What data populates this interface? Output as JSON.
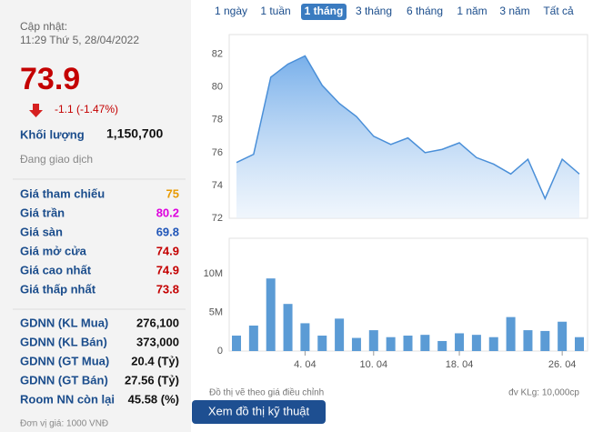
{
  "header": {
    "update_label": "Cập nhật:",
    "update_time": "11:29 Thứ 5, 28/04/2022"
  },
  "quote": {
    "price": "73.9",
    "change": "-1.1 (-1.47%)",
    "volume_label": "Khối lượng",
    "volume": "1,150,700",
    "status": "Đang giao dịch"
  },
  "prices": [
    {
      "label": "Giá tham chiếu",
      "value": "75",
      "color": "#e89a00"
    },
    {
      "label": "Giá trần",
      "value": "80.2",
      "color": "#dd00dd"
    },
    {
      "label": "Giá sàn",
      "value": "69.8",
      "color": "#1f55b8"
    },
    {
      "label": "Giá mở cửa",
      "value": "74.9",
      "color": "#c40000"
    },
    {
      "label": "Giá cao nhất",
      "value": "74.9",
      "color": "#c40000"
    },
    {
      "label": "Giá thấp nhất",
      "value": "73.8",
      "color": "#c40000"
    }
  ],
  "foreign": [
    {
      "label": "GDNN (KL Mua)",
      "value": "276,100"
    },
    {
      "label": "GDNN (KL Bán)",
      "value": "373,000"
    },
    {
      "label": "GDNN (GT Mua)",
      "value": "20.4 (Tỷ)"
    },
    {
      "label": "GDNN (GT Bán)",
      "value": "27.56 (Tỷ)"
    },
    {
      "label": "Room NN còn lại",
      "value": "45.58 (%)"
    }
  ],
  "unit_note": "Đơn vị giá: 1000 VNĐ",
  "tabs": {
    "items": [
      "1 ngày",
      "1 tuần",
      "1 tháng",
      "3 tháng",
      "6 tháng",
      "1 năm",
      "3 năm",
      "Tất cả"
    ],
    "active": 2
  },
  "chart_data": [
    {
      "type": "area",
      "color": "#4a8fd8",
      "values": [
        75.4,
        75.9,
        80.6,
        81.4,
        81.9,
        80.1,
        79,
        78.2,
        77,
        76.5,
        76.9,
        76,
        76.2,
        76.6,
        75.7,
        75.3,
        74.7,
        75.6,
        73.2,
        75.6,
        74.7
      ],
      "ylim": [
        72,
        83.2
      ],
      "yticks": [
        72,
        74,
        76,
        78,
        80,
        82
      ]
    },
    {
      "type": "bar",
      "color": "#5b9bd5",
      "categories": [
        null,
        null,
        null,
        null,
        "4. 04",
        null,
        null,
        null,
        "10. 04",
        null,
        null,
        null,
        null,
        "18. 04",
        null,
        null,
        null,
        null,
        null,
        "26. 04",
        null
      ],
      "values": [
        2000000,
        3300000,
        9400000,
        6100000,
        3600000,
        2000000,
        4200000,
        1700000,
        2700000,
        1800000,
        2000000,
        2100000,
        1300000,
        2300000,
        2100000,
        1800000,
        4400000,
        2700000,
        2600000,
        3800000,
        1800000
      ],
      "ylim": [
        0,
        14600000
      ],
      "yticks": [
        0,
        {
          "value": 5000000,
          "label": "5M"
        },
        {
          "value": 10000000,
          "label": "10M"
        }
      ]
    }
  ],
  "footer": {
    "note": "Đồ thị vẽ theo giá điều chỉnh",
    "volume_unit": "đv KLg: 10,000cp",
    "button": "Xem đồ thị kỹ thuật"
  }
}
